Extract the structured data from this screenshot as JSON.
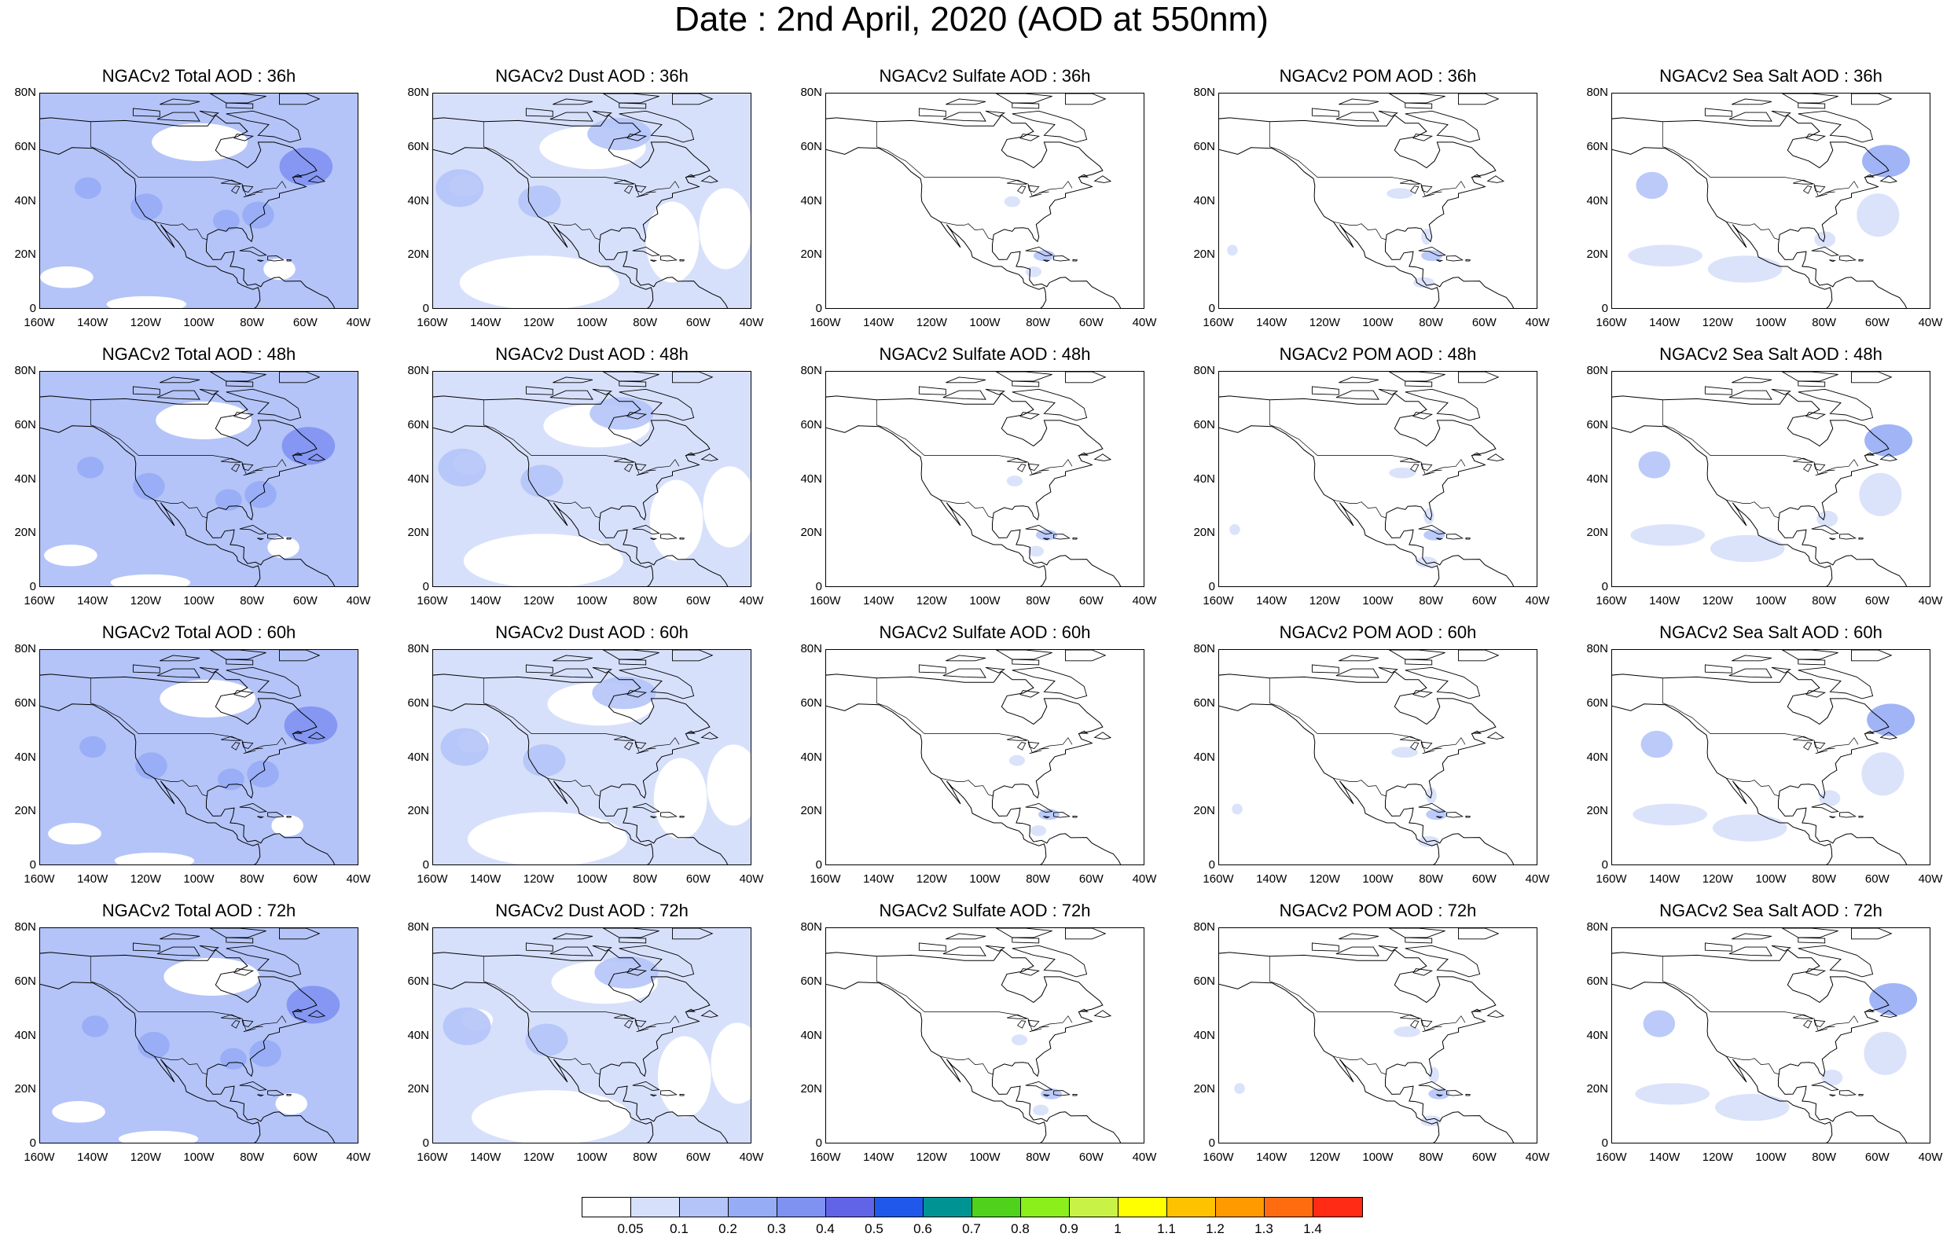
{
  "title": "Date : 2nd April, 2020 (AOD at 550nm)",
  "axes": {
    "x_ticks": [
      "160W",
      "140W",
      "120W",
      "100W",
      "80W",
      "60W",
      "40W"
    ],
    "y_ticks": [
      "80N",
      "60N",
      "40N",
      "20N",
      "0"
    ]
  },
  "colors": {
    "colorbar": [
      "#ffffff",
      "#d7e0fb",
      "#b4c4f8",
      "#96acf5",
      "#7f92f1",
      "#6264e8",
      "#1f58ea",
      "#009393",
      "#50d21d",
      "#8aef1a",
      "#c8f246",
      "#ffff00",
      "#fec200",
      "#ff9b00",
      "#ff6c0f",
      "#ff2b15"
    ]
  },
  "colorbar": {
    "labels": [
      "0.05",
      "0.1",
      "0.2",
      "0.3",
      "0.4",
      "0.5",
      "0.6",
      "0.7",
      "0.8",
      "0.9",
      "1",
      "1.1",
      "1.2",
      "1.3",
      "1.4"
    ]
  },
  "rows": [
    "36h",
    "48h",
    "60h",
    "72h"
  ],
  "columns": [
    "Total",
    "Dust",
    "Sulfate",
    "POM",
    "Sea Salt"
  ],
  "panels": [
    [
      "NGACv2 Total AOD : 36h",
      "NGACv2 Dust AOD : 36h",
      "NGACv2 Sulfate AOD : 36h",
      "NGACv2 POM AOD : 36h",
      "NGACv2 Sea Salt AOD : 36h"
    ],
    [
      "NGACv2 Total AOD : 48h",
      "NGACv2 Dust AOD : 48h",
      "NGACv2 Sulfate AOD : 48h",
      "NGACv2 POM AOD : 48h",
      "NGACv2 Sea Salt AOD : 48h"
    ],
    [
      "NGACv2 Total AOD : 60h",
      "NGACv2 Dust AOD : 60h",
      "NGACv2 Sulfate AOD : 60h",
      "NGACv2 POM AOD : 60h",
      "NGACv2 Sea Salt AOD : 60h"
    ],
    [
      "NGACv2 Total AOD : 72h",
      "NGACv2 Dust AOD : 72h",
      "NGACv2 Sulfate AOD : 72h",
      "NGACv2 POM AOD : 72h",
      "NGACv2 Sea Salt  AOD : 72h"
    ]
  ]
}
